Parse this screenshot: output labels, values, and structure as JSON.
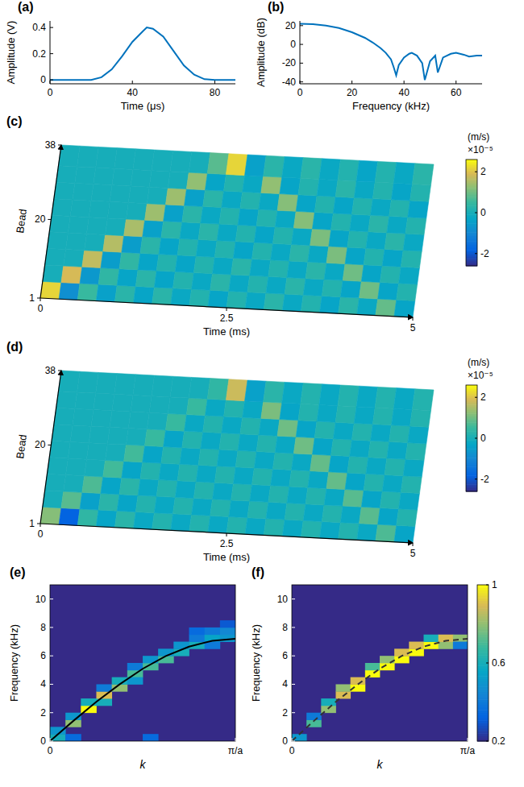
{
  "chart_data": [
    {
      "type": "line",
      "panel": "(a)",
      "x_label": "Time (μs)",
      "y_label": "Amplitude (V)",
      "color": "#0072bd",
      "x": [
        0,
        10,
        20,
        25,
        30,
        35,
        40,
        45,
        47,
        50,
        55,
        60,
        65,
        70,
        75,
        80,
        90
      ],
      "values": [
        0,
        0,
        0,
        0.02,
        0.08,
        0.18,
        0.29,
        0.37,
        0.4,
        0.39,
        0.33,
        0.22,
        0.11,
        0.04,
        0.005,
        0,
        0
      ],
      "xlim": [
        0,
        90
      ],
      "ylim": [
        -0.03,
        0.45
      ],
      "xticks": [
        0,
        40,
        80
      ],
      "yticks": [
        0,
        0.2,
        0.4
      ]
    },
    {
      "type": "line",
      "panel": "(b)",
      "x_label": "Frequency (kHz)",
      "y_label": "Amplitude (dB)",
      "color": "#0072bd",
      "x": [
        0,
        5,
        10,
        15,
        20,
        25,
        28,
        31,
        33,
        35,
        36,
        37,
        38,
        40,
        42,
        43,
        45,
        47,
        48,
        50,
        52,
        53,
        55,
        58,
        60,
        63,
        65,
        68,
        70
      ],
      "values": [
        22,
        21.5,
        20,
        17.5,
        13,
        7,
        2,
        -4,
        -9,
        -16,
        -24,
        -33,
        -22,
        -14,
        -10,
        -9,
        -12,
        -20,
        -38,
        -18,
        -12,
        -30,
        -14,
        -10,
        -9,
        -11,
        -13,
        -12,
        -12
      ],
      "xlim": [
        0,
        70
      ],
      "ylim": [
        -42,
        25
      ],
      "xticks": [
        0,
        20,
        40,
        60
      ],
      "yticks": [
        -40,
        -20,
        0,
        20
      ]
    },
    {
      "type": "surface",
      "panel": "(c)",
      "x_label": "Time (ms)",
      "y_label": "Bead",
      "xlim": [
        0,
        5
      ],
      "ylim": [
        1,
        38
      ],
      "xticks": [
        0,
        2.5,
        5
      ],
      "yticks": [
        1,
        20,
        38
      ],
      "time_edges": [
        0,
        0.25,
        0.5,
        0.75,
        1,
        1.25,
        1.5,
        1.75,
        2,
        2.25,
        2.5,
        2.75,
        3,
        3.25,
        3.5,
        3.75,
        4,
        4.25,
        4.5,
        4.75,
        5
      ],
      "bead_edges": [
        1,
        5,
        9,
        13,
        17,
        21,
        25,
        29,
        33,
        38
      ],
      "cells": [
        [
          2.2,
          -0.8,
          0.5,
          -0.4,
          0.3,
          -0.3,
          0.3,
          -0.2,
          0.2,
          -0.3,
          0.2,
          -0.2,
          0.3,
          -0.2,
          0.2,
          -0.3,
          0.3,
          -0.2,
          0.9,
          -0.3
        ],
        [
          0,
          1.9,
          -0.6,
          0.4,
          -0.3,
          0.3,
          -0.3,
          0.2,
          -0.2,
          0.3,
          -0.2,
          0.2,
          -0.2,
          0.3,
          -0.2,
          0.2,
          -0.3,
          1.0,
          -0.3,
          0.2
        ],
        [
          0,
          0,
          1.7,
          -0.5,
          0.4,
          -0.3,
          0.2,
          -0.3,
          0.2,
          -0.2,
          0.3,
          -0.2,
          0.2,
          -0.2,
          0.3,
          -0.2,
          1.0,
          -0.3,
          0.2,
          -0.2
        ],
        [
          0,
          0,
          0,
          1.6,
          -0.5,
          0.3,
          -0.3,
          0.2,
          -0.2,
          0.2,
          -0.3,
          0.2,
          -0.2,
          0.3,
          -0.2,
          1.1,
          -0.3,
          0.2,
          -0.3,
          0.2
        ],
        [
          0,
          0,
          0,
          0,
          1.5,
          -0.4,
          0.3,
          -0.2,
          0.3,
          -0.2,
          0.2,
          -0.3,
          0.2,
          -0.2,
          1.1,
          -0.3,
          0.2,
          -0.2,
          0.3,
          -0.2
        ],
        [
          0,
          0,
          0,
          0,
          0,
          1.4,
          -0.4,
          0.3,
          -0.2,
          0.2,
          -0.3,
          0.2,
          -0.2,
          1.2,
          -0.3,
          0.2,
          -0.2,
          0.3,
          -0.2,
          0.2
        ],
        [
          0,
          0,
          0,
          0,
          0,
          0,
          1.4,
          -0.4,
          0.3,
          -0.2,
          0.2,
          -0.2,
          1.2,
          -0.3,
          0.2,
          -0.3,
          0.2,
          -0.2,
          0.2,
          -0.3
        ],
        [
          0,
          0,
          0,
          0,
          0,
          0,
          0,
          1.3,
          -0.3,
          0.2,
          -0.2,
          1.3,
          -0.3,
          0.2,
          -0.2,
          0.3,
          -0.2,
          0.2,
          -0.3,
          0.2
        ],
        [
          0,
          0,
          0,
          0,
          0,
          0,
          0,
          0,
          0.8,
          2.2,
          -0.4,
          0.3,
          -0.2,
          0.3,
          -0.2,
          0.2,
          -0.3,
          0.2,
          -0.2,
          0.3
        ]
      ],
      "colorbar": {
        "label": "(m/s)",
        "scale_label": "×10⁻⁵",
        "clim": [
          -2.6,
          2.6
        ],
        "ticks": [
          -2,
          0,
          2
        ]
      }
    },
    {
      "type": "surface",
      "panel": "(d)",
      "x_label": "Time (ms)",
      "y_label": "Bead",
      "xlim": [
        0,
        5
      ],
      "ylim": [
        1,
        38
      ],
      "xticks": [
        0,
        2.5,
        5
      ],
      "yticks": [
        1,
        20,
        38
      ],
      "time_edges": [
        0,
        0.25,
        0.5,
        0.75,
        1,
        1.25,
        1.5,
        1.75,
        2,
        2.25,
        2.5,
        2.75,
        3,
        3.25,
        3.5,
        3.75,
        4,
        4.25,
        4.5,
        4.75,
        5
      ],
      "bead_edges": [
        1,
        5,
        9,
        13,
        17,
        21,
        25,
        29,
        33,
        38
      ],
      "cells": [
        [
          1.2,
          -1.8,
          0.4,
          -0.3,
          0.3,
          -0.2,
          0.2,
          -0.2,
          0.2,
          -0.2,
          0.2,
          -0.2,
          0.2,
          -0.2,
          0.2,
          -0.2,
          0.2,
          -0.2,
          0.7,
          -0.3
        ],
        [
          0,
          0.8,
          -0.4,
          0.3,
          -0.3,
          0.2,
          -0.2,
          0.2,
          -0.2,
          0.2,
          -0.2,
          0.2,
          -0.2,
          0.2,
          -0.2,
          0.2,
          -0.2,
          0.8,
          -0.3,
          0.2
        ],
        [
          0,
          0,
          0.7,
          -0.3,
          0.3,
          -0.2,
          0.2,
          -0.2,
          0.2,
          -0.2,
          0.2,
          -0.2,
          0.2,
          -0.2,
          0.2,
          -0.2,
          0.8,
          -0.3,
          0.2,
          -0.2
        ],
        [
          0,
          0,
          0,
          0.6,
          -0.3,
          0.2,
          -0.2,
          0.2,
          -0.2,
          0.2,
          -0.2,
          0.2,
          -0.2,
          0.2,
          -0.2,
          0.9,
          -0.3,
          0.2,
          -0.2,
          0.2
        ],
        [
          0,
          0,
          0,
          0,
          0.6,
          -0.3,
          0.2,
          -0.2,
          0.2,
          -0.2,
          0.2,
          -0.2,
          0.2,
          -0.2,
          0.9,
          -0.3,
          0.2,
          -0.2,
          0.2,
          -0.2
        ],
        [
          0,
          0,
          0,
          0,
          0,
          0.5,
          -0.3,
          0.2,
          -0.2,
          0.2,
          -0.2,
          0.2,
          -0.2,
          1.0,
          -0.3,
          0.2,
          -0.2,
          0.2,
          -0.2,
          0.2
        ],
        [
          0,
          0,
          0,
          0,
          0,
          0,
          0.5,
          -0.2,
          0.2,
          -0.2,
          0.2,
          -0.2,
          1.0,
          -0.3,
          0.2,
          -0.2,
          0.2,
          -0.2,
          0.2,
          -0.2
        ],
        [
          0,
          0,
          0,
          0,
          0,
          0,
          0,
          0.5,
          -0.2,
          0.2,
          -0.2,
          1.1,
          -0.3,
          0.2,
          -0.2,
          0.2,
          -0.2,
          0.2,
          -0.2,
          0.2
        ],
        [
          0,
          0,
          0,
          0,
          0,
          0,
          0,
          0,
          0.4,
          1.8,
          -0.4,
          0.3,
          -0.2,
          0.2,
          -0.2,
          0.2,
          -0.2,
          0.2,
          -0.2,
          0.2
        ]
      ],
      "colorbar": {
        "label": "(m/s)",
        "scale_label": "×10⁻⁵",
        "clim": [
          -2.6,
          2.6
        ],
        "ticks": [
          -2,
          0,
          2
        ]
      }
    },
    {
      "type": "heatmap",
      "panel": "(e)",
      "x_label": "k",
      "y_label": "Frequency (kHz)",
      "xlim": [
        0,
        3.1416
      ],
      "ylim": [
        0,
        11
      ],
      "xticks": [
        0,
        {
          "value": 3.1416,
          "label": "π/a"
        }
      ],
      "yticks": [
        0,
        2,
        4,
        6,
        8,
        10
      ],
      "clim": [
        0.2,
        1
      ],
      "background": 0.2,
      "k_step": 0.2618,
      "f_step": 0.5,
      "cells": [
        [
          0.131,
          0.25,
          0.6
        ],
        [
          0.131,
          0.75,
          0.5
        ],
        [
          0.393,
          1.25,
          0.8
        ],
        [
          0.393,
          1.75,
          0.5
        ],
        [
          0.393,
          0.25,
          0.35
        ],
        [
          0.654,
          2.25,
          1
        ],
        [
          0.654,
          2.75,
          0.6
        ],
        [
          0.916,
          2.75,
          0.6
        ],
        [
          0.916,
          3.25,
          0.9
        ],
        [
          0.916,
          3.75,
          0.4
        ],
        [
          1.178,
          3.75,
          0.8
        ],
        [
          1.178,
          4.25,
          0.6
        ],
        [
          1.44,
          4.75,
          0.7
        ],
        [
          1.44,
          4.25,
          0.5
        ],
        [
          1.44,
          5.25,
          0.4
        ],
        [
          1.702,
          5.25,
          0.7
        ],
        [
          1.702,
          5.75,
          0.5
        ],
        [
          1.702,
          0.25,
          0.35
        ],
        [
          1.963,
          5.75,
          0.7
        ],
        [
          1.963,
          6.25,
          0.5
        ],
        [
          2.225,
          6.25,
          0.6
        ],
        [
          2.225,
          6.75,
          0.5
        ],
        [
          2.487,
          6.75,
          0.6
        ],
        [
          2.487,
          7.25,
          0.4
        ],
        [
          2.487,
          7.75,
          0.35
        ],
        [
          2.749,
          7.25,
          0.55
        ],
        [
          2.749,
          7.75,
          0.4
        ],
        [
          2.749,
          6.75,
          0.4
        ],
        [
          3.011,
          7.25,
          0.5
        ],
        [
          3.011,
          7.75,
          0.45
        ],
        [
          3.011,
          8.25,
          0.3
        ]
      ],
      "curve": {
        "x": [
          0,
          0.3927,
          0.7854,
          1.1781,
          1.5708,
          1.9635,
          2.3562,
          2.7489,
          3.1416
        ],
        "values": [
          0,
          1.41,
          2.76,
          3.99,
          5.09,
          5.99,
          6.65,
          7.06,
          7.2
        ],
        "color": "#000000",
        "line_style": "solid"
      }
    },
    {
      "type": "heatmap",
      "panel": "(f)",
      "x_label": "k",
      "y_label": "Frequency (kHz)",
      "xlim": [
        0,
        3.1416
      ],
      "ylim": [
        0,
        11
      ],
      "xticks": [
        0,
        {
          "value": 3.1416,
          "label": "π/a"
        }
      ],
      "yticks": [
        0,
        2,
        4,
        6,
        8,
        10
      ],
      "clim": [
        0.2,
        1
      ],
      "background": 0.2,
      "k_step": 0.2618,
      "f_step": 0.5,
      "cells": [
        [
          0.131,
          0.25,
          0.5
        ],
        [
          0.393,
          1.25,
          0.7
        ],
        [
          0.393,
          1.75,
          0.4
        ],
        [
          0.654,
          2.25,
          0.8
        ],
        [
          0.654,
          2.75,
          0.6
        ],
        [
          0.916,
          3.25,
          0.9
        ],
        [
          0.916,
          3.75,
          0.8
        ],
        [
          1.178,
          3.75,
          1
        ],
        [
          1.178,
          4.25,
          0.9
        ],
        [
          1.44,
          4.75,
          1
        ],
        [
          1.44,
          5.25,
          0.7
        ],
        [
          1.702,
          5.25,
          1
        ],
        [
          1.702,
          5.75,
          0.8
        ],
        [
          1.963,
          5.75,
          1
        ],
        [
          1.963,
          6.25,
          0.9
        ],
        [
          2.225,
          6.25,
          1
        ],
        [
          2.225,
          6.75,
          0.9
        ],
        [
          2.487,
          6.75,
          1
        ],
        [
          2.487,
          7.25,
          0.6
        ],
        [
          2.749,
          6.75,
          0.8
        ],
        [
          2.749,
          7.25,
          0.9
        ],
        [
          3.011,
          7.25,
          0.8
        ],
        [
          3.011,
          6.75,
          0.4
        ]
      ],
      "curve": {
        "x": [
          0,
          0.3927,
          0.7854,
          1.1781,
          1.5708,
          1.9635,
          2.3562,
          2.7489,
          3.1416
        ],
        "values": [
          0,
          1.41,
          2.76,
          3.99,
          5.09,
          5.99,
          6.65,
          7.06,
          7.2
        ],
        "color": "#333333",
        "line_style": "dashed"
      },
      "colorbar": {
        "ticks": [
          0.2,
          0.6,
          1
        ]
      }
    }
  ]
}
